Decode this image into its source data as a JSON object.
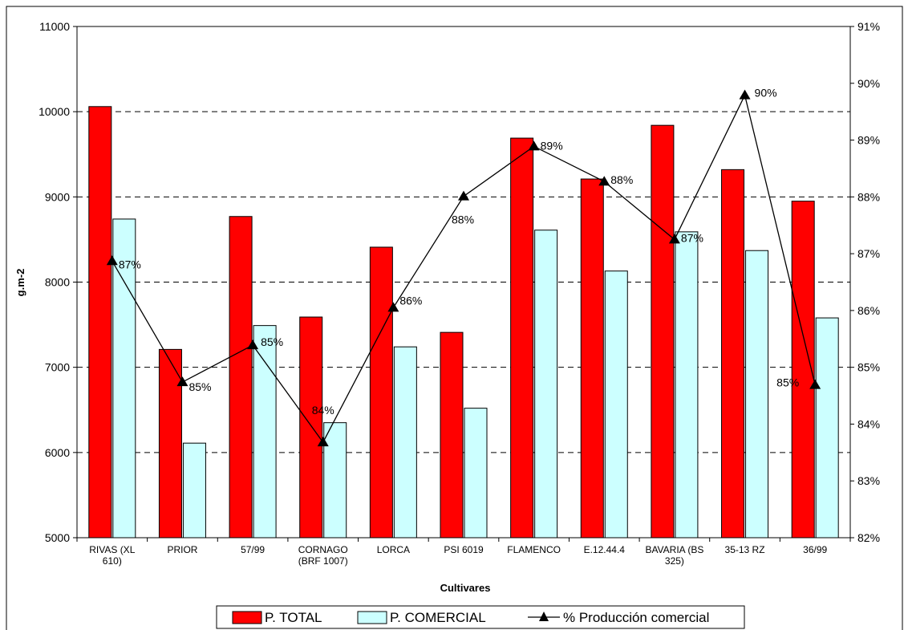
{
  "chart_data": {
    "type": "bar",
    "categories": [
      "RIVAS (XL 610)",
      "PRIOR",
      "57/99",
      "CORNAGO (BRF 1007)",
      "LORCA",
      "PSI 6019",
      "FLAMENCO",
      "E.12.44.4",
      "BAVARIA (BS 325)",
      "35-13 RZ",
      "36/99"
    ],
    "category_lines": [
      [
        "RIVAS (XL",
        "610)"
      ],
      [
        "PRIOR"
      ],
      [
        "57/99"
      ],
      [
        "CORNAGO",
        "(BRF 1007)"
      ],
      [
        "LORCA"
      ],
      [
        "PSI 6019"
      ],
      [
        "FLAMENCO"
      ],
      [
        "E.12.44.4"
      ],
      [
        "BAVARIA (BS",
        "325)"
      ],
      [
        "35-13 RZ"
      ],
      [
        "36/99"
      ]
    ],
    "series": [
      {
        "name": "P. TOTAL",
        "type": "bar",
        "axis": "left",
        "color": "#ff0000",
        "values": [
          10060,
          7210,
          8770,
          7590,
          8410,
          7410,
          9690,
          9210,
          9840,
          9320,
          8950
        ]
      },
      {
        "name": "P. COMERCIAL",
        "type": "bar",
        "axis": "left",
        "color": "#ccffff",
        "values": [
          8740,
          6110,
          7490,
          6350,
          7240,
          6520,
          8610,
          8130,
          8590,
          8370,
          7580
        ]
      },
      {
        "name": "% Producción comercial",
        "type": "line",
        "axis": "right",
        "color": "#000000",
        "values": [
          86.87,
          84.74,
          85.39,
          83.68,
          86.05,
          88.01,
          88.89,
          88.27,
          87.25,
          89.79,
          84.69
        ],
        "labels": [
          "87%",
          "85%",
          "85%",
          "84%",
          "86%",
          "88%",
          "89%",
          "88%",
          "87%",
          "90%",
          "85%"
        ]
      }
    ],
    "xlabel": "Cultivares",
    "ylabel": "g.m-2",
    "ylim": [
      5000,
      11000
    ],
    "yticks": [
      5000,
      6000,
      7000,
      8000,
      9000,
      10000,
      11000
    ],
    "y2lim": [
      82,
      91
    ],
    "y2ticks": [
      "82%",
      "83%",
      "84%",
      "85%",
      "86%",
      "87%",
      "88%",
      "89%",
      "90%",
      "91%"
    ],
    "grid": true,
    "legend_position": "bottom"
  }
}
